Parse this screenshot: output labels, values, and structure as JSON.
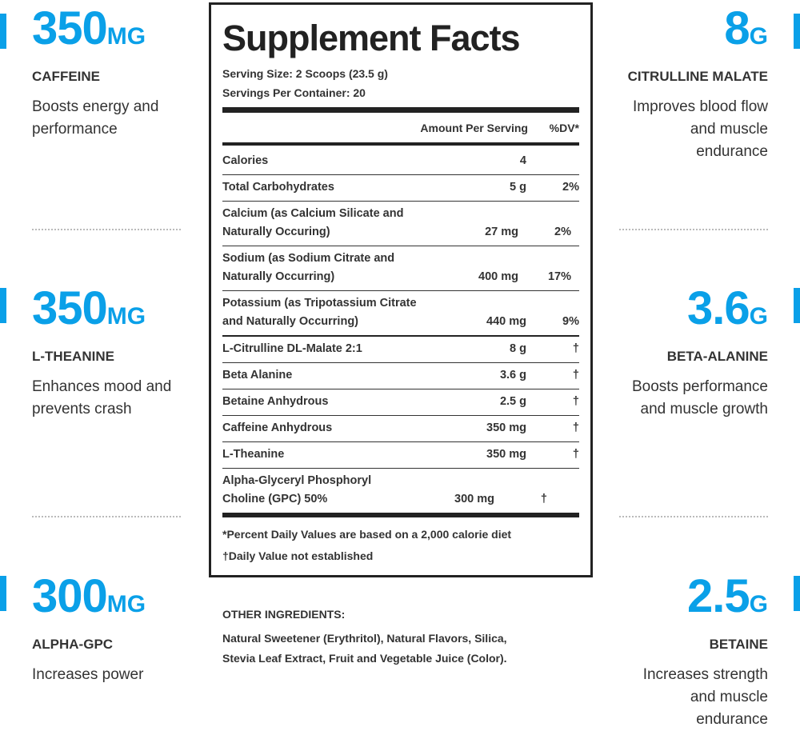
{
  "colors": {
    "accent": "#0aa0e8",
    "text": "#333333"
  },
  "left": [
    {
      "value": "350",
      "unit": "MG",
      "label": "CAFFEINE",
      "desc": "Boosts energy and performance"
    },
    {
      "value": "350",
      "unit": "MG",
      "label": "L-THEANINE",
      "desc": "Enhances mood and prevents crash"
    },
    {
      "value": "300",
      "unit": "MG",
      "label": "ALPHA-GPC",
      "desc": "Increases power"
    }
  ],
  "right": [
    {
      "value": "8",
      "unit": "G",
      "label": "CITRULLINE MALATE",
      "desc": "Improves blood flow and muscle endurance"
    },
    {
      "value": "3.6",
      "unit": "G",
      "label": "BETA-ALANINE",
      "desc": "Boosts performance and muscle growth"
    },
    {
      "value": "2.5",
      "unit": "G",
      "label": "BETAINE",
      "desc": "Increases strength and muscle endurance"
    }
  ],
  "facts": {
    "title": "Supplement Facts",
    "serving_size": "Serving Size: 2 Scoops (23.5 g)",
    "servings": "Servings Per Container: 20",
    "amount_header": "Amount Per Serving",
    "dv_header": "%DV*",
    "rows": [
      {
        "name": "Calories",
        "amount": "4",
        "dv": ""
      },
      {
        "name": "Total Carbohydrates",
        "amount": "5 g",
        "dv": "2%"
      },
      {
        "name": "Calcium (as Calcium Silicate and Naturally Occuring)",
        "amount": "27 mg",
        "dv": "2%"
      },
      {
        "name": "Sodium (as Sodium Citrate and Naturally Occurring)",
        "amount": "400 mg",
        "dv": "17%"
      },
      {
        "name": "Potassium (as Tripotassium Citrate and Naturally Occurring)",
        "amount": "440 mg",
        "dv": "9%"
      },
      {
        "name": "L-Citrulline DL-Malate 2:1",
        "amount": "8 g",
        "dv": "†"
      },
      {
        "name": "Beta Alanine",
        "amount": "3.6 g",
        "dv": "†"
      },
      {
        "name": "Betaine Anhydrous",
        "amount": "2.5 g",
        "dv": "†"
      },
      {
        "name": "Caffeine Anhydrous",
        "amount": "350 mg",
        "dv": "†"
      },
      {
        "name": "L-Theanine",
        "amount": "350 mg",
        "dv": "†"
      },
      {
        "name": "Alpha-Glyceryl Phosphoryl Choline (GPC) 50%",
        "amount": "300 mg",
        "dv": "†"
      }
    ],
    "footnote1": "*Percent Daily Values are based on a 2,000 calorie diet",
    "footnote2": "†Daily Value not established"
  },
  "other": {
    "heading": "OTHER INGREDIENTS:",
    "line1": "Natural Sweetener (Erythritol), Natural Flavors, Silica,",
    "line2": "Stevia Leaf Extract, Fruit and Vegetable Juice (Color)."
  }
}
